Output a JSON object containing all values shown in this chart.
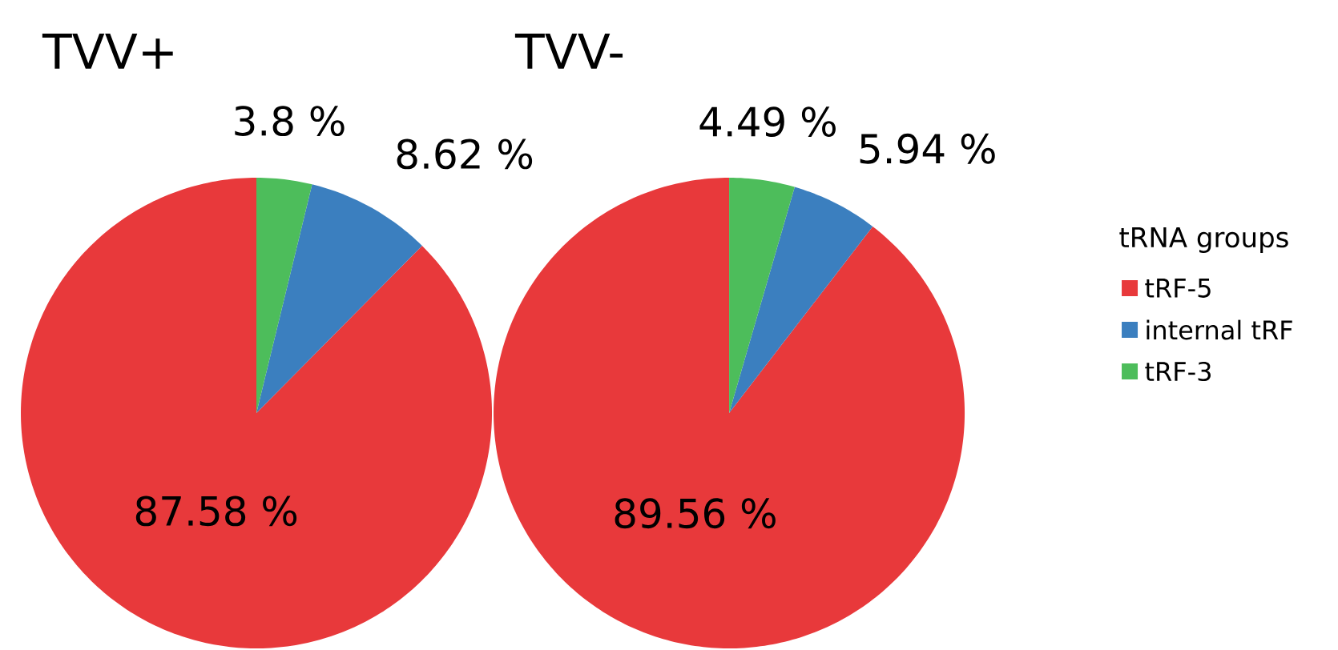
{
  "chart_data": [
    {
      "type": "pie",
      "title": "TVV+",
      "categories": [
        null,
        null,
        null
      ],
      "values": [
        87.58,
        8.62,
        3.8
      ],
      "value_labels": [
        "87.58 %",
        "8.62 %",
        "3.8 %"
      ],
      "colors": [
        "#e8393b",
        "#3b7fbf",
        "#4dbd5b"
      ]
    },
    {
      "type": "pie",
      "title": "TVV-",
      "categories": [
        "tRF-5",
        "internal tRF",
        "tRF-3"
      ],
      "values": [
        89.56,
        5.94,
        4.49
      ],
      "value_labels": [
        "89.56 %",
        "5.94 %",
        "4.49 %"
      ],
      "colors": [
        "#e8393b",
        "#3b7fbf",
        "#4dbd5b"
      ],
      "legend": "right",
      "legend_title": "tRNA groups"
    }
  ]
}
